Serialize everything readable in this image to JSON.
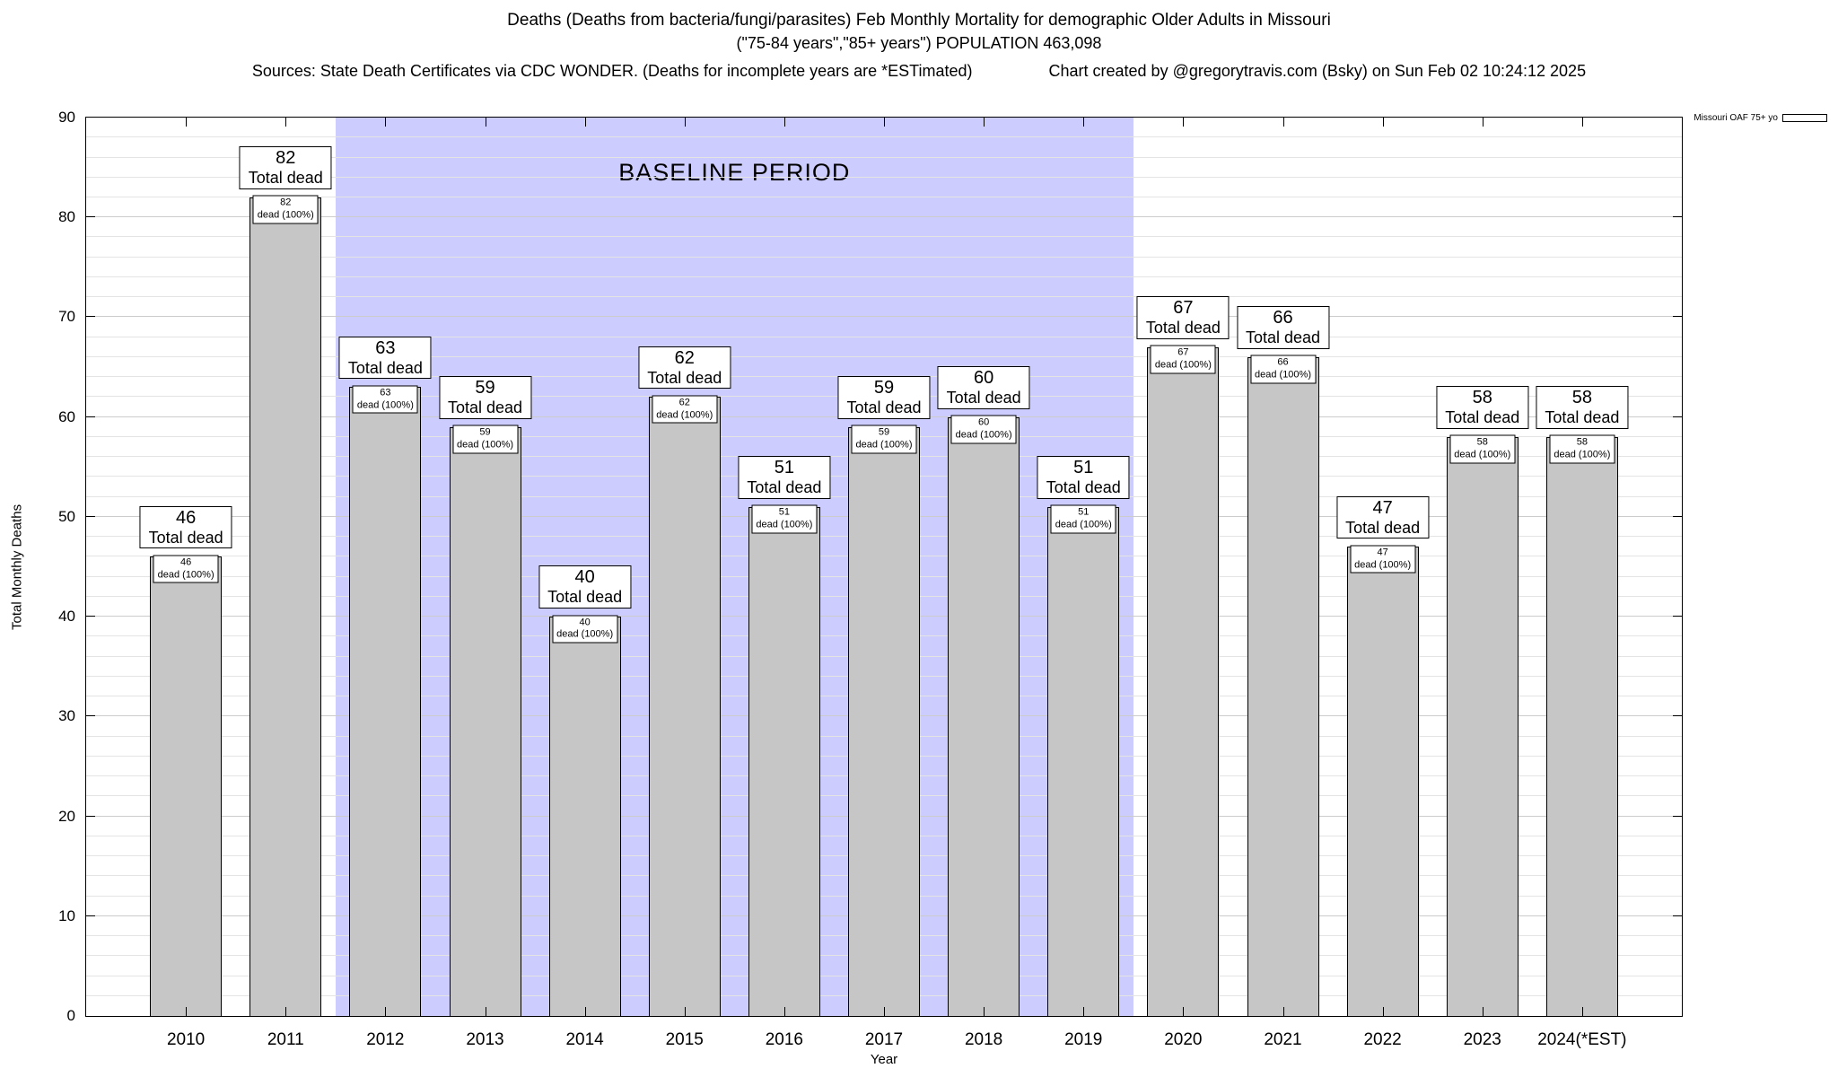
{
  "header": {
    "title_line1": "Deaths (Deaths from bacteria/fungi/parasites) Feb Monthly Mortality for demographic Older Adults in Missouri",
    "title_line2": "(\"75-84 years\",\"85+ years\") POPULATION 463,098",
    "sources": "Sources: State Death Certificates via CDC WONDER. (Deaths for incomplete years are *ESTimated)",
    "credit": "Chart created by @gregorytravis.com (Bsky) on Sun Feb 02 10:24:12 2025"
  },
  "chart_data": {
    "type": "bar",
    "title": "Deaths (Deaths from bacteria/fungi/parasites) Feb Monthly Mortality for demographic Older Adults in Missouri",
    "subtitle": "(\"75-84 years\",\"85+ years\") POPULATION 463,098",
    "ylabel": "Total Monthly Deaths",
    "xlabel": "Year",
    "ylim": [
      0,
      90
    ],
    "ytick_interval": 10,
    "minor_grid_step": 2,
    "grid": true,
    "x_range": [
      2009,
      2025
    ],
    "categories": [
      "2010",
      "2011",
      "2012",
      "2013",
      "2014",
      "2015",
      "2016",
      "2017",
      "2018",
      "2019",
      "2020",
      "2021",
      "2022",
      "2023",
      "2024(*EST)"
    ],
    "x": [
      2010,
      2011,
      2012,
      2013,
      2014,
      2015,
      2016,
      2017,
      2018,
      2019,
      2020,
      2021,
      2022,
      2023,
      2024
    ],
    "values": [
      46,
      82,
      63,
      59,
      40,
      62,
      51,
      59,
      60,
      51,
      67,
      66,
      47,
      58,
      58
    ],
    "bar_width_years": 0.72,
    "big_label_suffix": "Total dead",
    "small_label_suffix": "dead (100%)",
    "baseline_region": {
      "label": "BASELINE PERIOD",
      "x_start": 2011.5,
      "x_end": 2019.5,
      "color": "#ccccff"
    },
    "legend": {
      "label": "Missouri OAF 75+ yo",
      "position": "top-right"
    },
    "colors": {
      "bar_fill": "#c6c6c6",
      "bar_border": "#000000",
      "grid_minor": "#e4e4e4",
      "grid_major": "#cccccc"
    }
  }
}
